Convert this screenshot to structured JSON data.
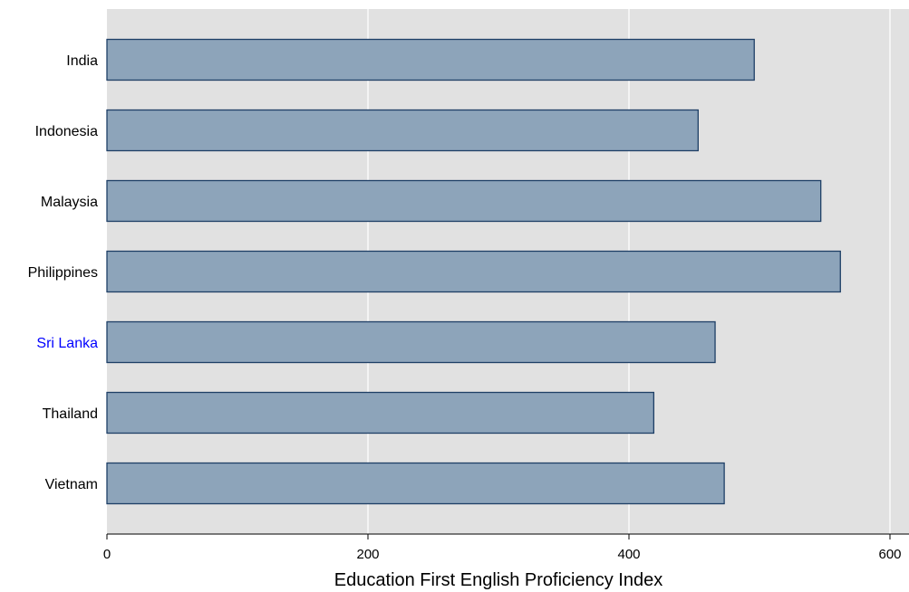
{
  "chart_data": {
    "type": "bar",
    "orientation": "horizontal",
    "categories": [
      "India",
      "Indonesia",
      "Malaysia",
      "Philippines",
      "Sri Lanka",
      "Thailand",
      "Vietnam"
    ],
    "values": [
      496,
      453,
      547,
      562,
      466,
      419,
      473
    ],
    "highlight_category": "Sri Lanka",
    "xlabel": "Education First English Proficiency Index",
    "ylabel": "",
    "xlim": [
      0,
      600
    ],
    "x_ticks": [
      0,
      200,
      400,
      600
    ],
    "x_tick_labels": [
      "0",
      "200",
      "400",
      "600"
    ],
    "grid": true,
    "colors": {
      "plot_background": "#e1e1e1",
      "bar_fill": "#8da4ba",
      "bar_edge": "#1e3f66",
      "gridline": "#ffffff",
      "label": "#000000",
      "highlight_label": "#0000ff"
    }
  }
}
